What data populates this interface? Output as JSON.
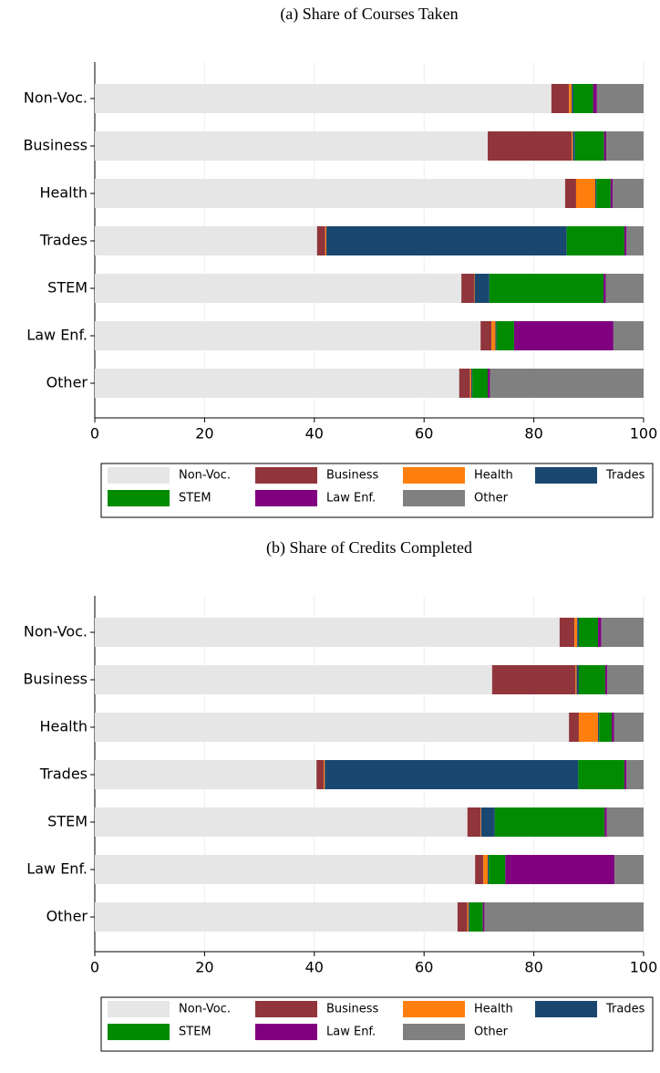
{
  "chart_data": [
    {
      "type": "bar",
      "orientation": "horizontal",
      "stacked": true,
      "title": "(a) Share of Courses Taken",
      "categories": [
        "Non-Voc.",
        "Business",
        "Health",
        "Trades",
        "STEM",
        "Law Enf.",
        "Other"
      ],
      "series": [
        {
          "name": "Non-Voc.",
          "color": "#e6e6e6",
          "values": [
            83.2,
            71.6,
            85.7,
            40.5,
            66.8,
            70.3,
            66.4
          ]
        },
        {
          "name": "Business",
          "color": "#90353b",
          "values": [
            3.2,
            15.3,
            2.0,
            1.5,
            2.3,
            2.0,
            2.0
          ]
        },
        {
          "name": "Health",
          "color": "#ff7f0e",
          "values": [
            0.5,
            0.2,
            3.5,
            0.2,
            0.1,
            0.7,
            0.2
          ]
        },
        {
          "name": "Trades",
          "color": "#1a476f",
          "values": [
            0.3,
            0.4,
            0.2,
            43.8,
            2.7,
            0.2,
            0.2
          ]
        },
        {
          "name": "STEM",
          "color": "#008b00",
          "values": [
            3.6,
            5.3,
            2.6,
            10.5,
            20.8,
            3.2,
            2.8
          ]
        },
        {
          "name": "Law Enf.",
          "color": "#800080",
          "values": [
            0.7,
            0.4,
            0.4,
            0.4,
            0.4,
            18.1,
            0.4
          ]
        },
        {
          "name": "Other",
          "color": "#808080",
          "values": [
            8.5,
            6.8,
            5.6,
            3.1,
            6.9,
            5.5,
            28.0
          ]
        }
      ],
      "xlim": [
        0,
        100
      ],
      "xticks": [
        0,
        20,
        40,
        60,
        80,
        100
      ],
      "grid": true,
      "legend": "bottom"
    },
    {
      "type": "bar",
      "orientation": "horizontal",
      "stacked": true,
      "title": "(b) Share of Credits Completed",
      "categories": [
        "Non-Voc.",
        "Business",
        "Health",
        "Trades",
        "STEM",
        "Law Enf.",
        "Other"
      ],
      "series": [
        {
          "name": "Non-Voc.",
          "color": "#e6e6e6",
          "values": [
            84.7,
            72.4,
            86.4,
            40.4,
            67.9,
            69.3,
            66.1
          ]
        },
        {
          "name": "Business",
          "color": "#90353b",
          "values": [
            2.7,
            15.2,
            1.8,
            1.3,
            2.4,
            1.5,
            1.8
          ]
        },
        {
          "name": "Health",
          "color": "#ff7f0e",
          "values": [
            0.5,
            0.2,
            3.5,
            0.2,
            0.1,
            0.8,
            0.2
          ]
        },
        {
          "name": "Trades",
          "color": "#1a476f",
          "values": [
            0.3,
            0.4,
            0.2,
            46.2,
            2.5,
            0.2,
            0.2
          ]
        },
        {
          "name": "STEM",
          "color": "#008b00",
          "values": [
            3.5,
            4.8,
            2.3,
            8.4,
            20.0,
            3.0,
            2.4
          ]
        },
        {
          "name": "Law Enf.",
          "color": "#800080",
          "values": [
            0.6,
            0.4,
            0.4,
            0.4,
            0.4,
            19.9,
            0.3
          ]
        },
        {
          "name": "Other",
          "color": "#808080",
          "values": [
            7.7,
            6.6,
            5.4,
            3.1,
            6.7,
            5.3,
            29.0
          ]
        }
      ],
      "xlim": [
        0,
        100
      ],
      "xticks": [
        0,
        20,
        40,
        60,
        80,
        100
      ],
      "grid": true,
      "legend": "bottom"
    }
  ]
}
